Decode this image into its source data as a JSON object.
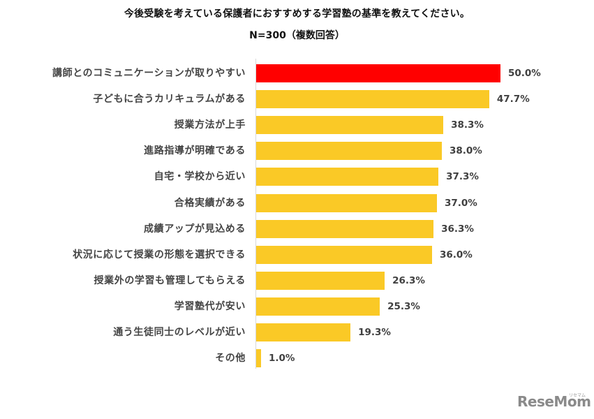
{
  "chart_data": {
    "type": "bar",
    "orientation": "horizontal",
    "title": "今後受験を考えている保護者におすすめする学習塾の基準を教えてください。",
    "subtitle": "N=300（複数回答）",
    "xlabel": "",
    "ylabel": "",
    "xlim": [
      0,
      50
    ],
    "grid": false,
    "legend": null,
    "categories": [
      "講師とのコミュニケーションが取りやすい",
      "子どもに合うカリキュラムがある",
      "授業方法が上手",
      "進路指導が明確である",
      "自宅・学校から近い",
      "合格実績がある",
      "成績アップが見込める",
      "状況に応じて授業の形態を選択できる",
      "授業外の学習も管理してもらえる",
      "学習塾代が安い",
      "通う生徒同士のレベルが近い",
      "その他"
    ],
    "values": [
      50.0,
      47.7,
      38.3,
      38.0,
      37.3,
      37.0,
      36.3,
      36.0,
      26.3,
      25.3,
      19.3,
      1.0
    ],
    "value_labels": [
      "50.0%",
      "47.7%",
      "38.3%",
      "38.0%",
      "37.3%",
      "37.0%",
      "36.3%",
      "36.0%",
      "26.3%",
      "25.3%",
      "19.3%",
      "1.0%"
    ],
    "bar_colors": [
      "#FF0000",
      "#FAC926",
      "#FAC926",
      "#FAC926",
      "#FAC926",
      "#FAC926",
      "#FAC926",
      "#FAC926",
      "#FAC926",
      "#FAC926",
      "#FAC926",
      "#FAC926"
    ],
    "highlight_color": "#FF0000",
    "default_color": "#FAC926"
  },
  "logo": {
    "text": "ReseMom",
    "kana": "リセマム"
  }
}
